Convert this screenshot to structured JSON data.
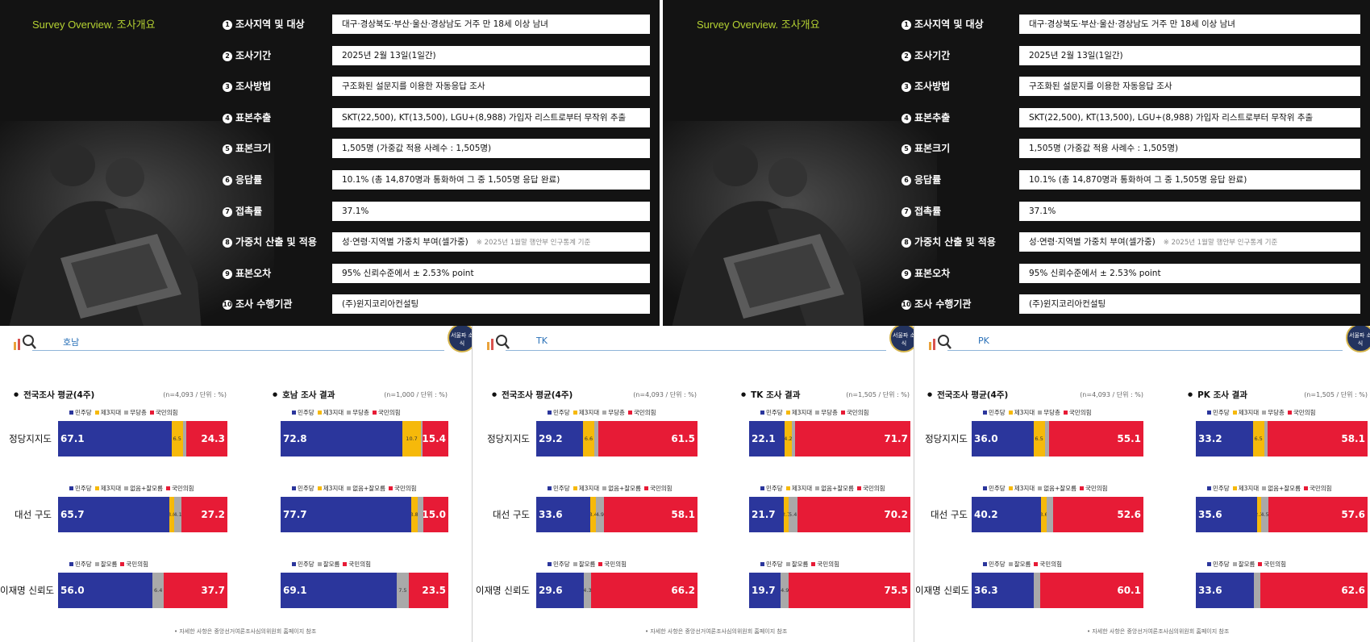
{
  "colors": {
    "dem": "#2b369c",
    "third": "#f6b90a",
    "none": "#a9a9a9",
    "ppp": "#e71b36",
    "title": "#b5d232"
  },
  "survey": {
    "title": "Survey Overview. 조사개요",
    "rows": [
      {
        "num": "1",
        "label": "조사지역 및 대상",
        "value": "대구·경상북도·부산·울산·경상남도 거주 만 18세 이상 남녀",
        "note": ""
      },
      {
        "num": "2",
        "label": "조사기간",
        "value": "2025년 2월 13일(1일간)",
        "note": ""
      },
      {
        "num": "3",
        "label": "조사방법",
        "value": "구조화된 설문지를 이용한 자동응답 조사",
        "note": ""
      },
      {
        "num": "4",
        "label": "표본추출",
        "value": "SKT(22,500), KT(13,500), LGU+(8,988) 가입자 리스트로부터 무작위 추출",
        "note": ""
      },
      {
        "num": "5",
        "label": "표본크기",
        "value": "1,505명 (가중값 적용 사례수 : 1,505명)",
        "note": ""
      },
      {
        "num": "6",
        "label": "응답률",
        "value": "10.1% (총 14,870명과 통화하여 그 중 1,505명 응답 완료)",
        "note": ""
      },
      {
        "num": "7",
        "label": "접촉률",
        "value": "37.1%",
        "note": ""
      },
      {
        "num": "8",
        "label": "가중치 산출 및 적용",
        "value": "성·연령·지역별 가중치 부여(셀가중)",
        "note": "※ 2025년 1월말 행안부 인구통계 기준"
      },
      {
        "num": "9",
        "label": "표본오차",
        "value": "95% 신뢰수준에서 ± 2.53% point",
        "note": ""
      },
      {
        "num": "10",
        "label": "조사 수행기관",
        "value": "(주)윈지코리아컨설팅",
        "note": ""
      }
    ]
  },
  "seal_text": "서울파 소식",
  "panels": [
    {
      "region": "호남",
      "footnote": "• 자세한 사항은 중앙선거여론조사심의위원회 홈페이지 참조"
    },
    {
      "region": "TK",
      "footnote": "• 자세한 사항은 중앙선거여론조사심의위원회 홈페이지 참조"
    },
    {
      "region": "PK",
      "footnote": "• 자세한 사항은 중앙선거여론조사심의위원회 홈페이지 참조"
    }
  ],
  "row_labels": [
    "정당지지도",
    "대선 구도",
    "이재명 신뢰도"
  ],
  "legends": [
    [
      {
        "name": "민주당",
        "c": "dem"
      },
      {
        "name": "제3지대",
        "c": "third"
      },
      {
        "name": "무당층",
        "c": "none"
      },
      {
        "name": "국민의힘",
        "c": "ppp"
      }
    ],
    [
      {
        "name": "민주당",
        "c": "dem"
      },
      {
        "name": "제3지대",
        "c": "third"
      },
      {
        "name": "없음+잘모름",
        "c": "none"
      },
      {
        "name": "국민의힘",
        "c": "ppp"
      }
    ],
    [
      {
        "name": "민주당",
        "c": "dem"
      },
      {
        "name": "잘모름",
        "c": "none"
      },
      {
        "name": "국민의힘",
        "c": "ppp"
      }
    ]
  ],
  "chart_data": [
    {
      "type": "bar",
      "stacked": true,
      "horizontal": true,
      "title": "전국조사 평균(4주)",
      "note": "(n=4,093 / 단위 : %)",
      "categories": [
        "정당지지도",
        "대선 구도",
        "이재명 신뢰도"
      ],
      "rows": [
        [
          {
            "c": "dem",
            "v": 67.1
          },
          {
            "c": "third",
            "v": 6.5
          },
          {
            "c": "none",
            "v": 2.1
          },
          {
            "c": "ppp",
            "v": 24.3
          }
        ],
        [
          {
            "c": "dem",
            "v": 65.7
          },
          {
            "c": "third",
            "v": 3.0
          },
          {
            "c": "none",
            "v": 4.1
          },
          {
            "c": "ppp",
            "v": 27.2
          }
        ],
        [
          {
            "c": "dem",
            "v": 56.0
          },
          {
            "c": "none",
            "v": 6.4
          },
          {
            "c": "ppp",
            "v": 37.7
          }
        ]
      ]
    },
    {
      "type": "bar",
      "stacked": true,
      "horizontal": true,
      "title": "호남 조사 결과",
      "note": "(n=1,000 / 단위 : %)",
      "categories": [
        "정당지지도",
        "대선 구도",
        "이재명 신뢰도"
      ],
      "rows": [
        [
          {
            "c": "dem",
            "v": 72.8
          },
          {
            "c": "third",
            "v": 10.7
          },
          {
            "c": "none",
            "v": 1.1
          },
          {
            "c": "ppp",
            "v": 15.4
          }
        ],
        [
          {
            "c": "dem",
            "v": 77.7
          },
          {
            "c": "third",
            "v": 3.8
          },
          {
            "c": "none",
            "v": 3.5
          },
          {
            "c": "ppp",
            "v": 15.0
          }
        ],
        [
          {
            "c": "dem",
            "v": 69.1
          },
          {
            "c": "none",
            "v": 7.5
          },
          {
            "c": "ppp",
            "v": 23.5
          }
        ]
      ]
    },
    {
      "type": "bar",
      "stacked": true,
      "horizontal": true,
      "title": "전국조사 평균(4주)",
      "note": "(n=4,093 / 단위 : %)",
      "categories": [
        "정당지지도",
        "대선 구도",
        "이재명 신뢰도"
      ],
      "rows": [
        [
          {
            "c": "dem",
            "v": 29.2
          },
          {
            "c": "third",
            "v": 6.6
          },
          {
            "c": "none",
            "v": 2.7
          },
          {
            "c": "ppp",
            "v": 61.5
          }
        ],
        [
          {
            "c": "dem",
            "v": 33.6
          },
          {
            "c": "third",
            "v": 3.4
          },
          {
            "c": "none",
            "v": 4.9
          },
          {
            "c": "ppp",
            "v": 58.1
          }
        ],
        [
          {
            "c": "dem",
            "v": 29.6
          },
          {
            "c": "none",
            "v": 4.3
          },
          {
            "c": "ppp",
            "v": 66.2
          }
        ]
      ]
    },
    {
      "type": "bar",
      "stacked": true,
      "horizontal": true,
      "title": "TK 조사 결과",
      "note": "(n=1,505 / 단위 : %)",
      "categories": [
        "정당지지도",
        "대선 구도",
        "이재명 신뢰도"
      ],
      "rows": [
        [
          {
            "c": "dem",
            "v": 22.1
          },
          {
            "c": "third",
            "v": 4.2
          },
          {
            "c": "none",
            "v": 2.0
          },
          {
            "c": "ppp",
            "v": 71.7
          }
        ],
        [
          {
            "c": "dem",
            "v": 21.7
          },
          {
            "c": "third",
            "v": 2.7
          },
          {
            "c": "none",
            "v": 5.4
          },
          {
            "c": "ppp",
            "v": 70.2
          }
        ],
        [
          {
            "c": "dem",
            "v": 19.7
          },
          {
            "c": "none",
            "v": 4.9
          },
          {
            "c": "ppp",
            "v": 75.5
          }
        ]
      ]
    },
    {
      "type": "bar",
      "stacked": true,
      "horizontal": true,
      "title": "전국조사 평균(4주)",
      "note": "(n=4,093 / 단위 : %)",
      "categories": [
        "정당지지도",
        "대선 구도",
        "이재명 신뢰도"
      ],
      "rows": [
        [
          {
            "c": "dem",
            "v": 36.0
          },
          {
            "c": "third",
            "v": 6.5
          },
          {
            "c": "none",
            "v": 2.4
          },
          {
            "c": "ppp",
            "v": 55.1
          }
        ],
        [
          {
            "c": "dem",
            "v": 40.2
          },
          {
            "c": "third",
            "v": 3.6
          },
          {
            "c": "none",
            "v": 3.6
          },
          {
            "c": "ppp",
            "v": 52.6
          }
        ],
        [
          {
            "c": "dem",
            "v": 36.3
          },
          {
            "c": "none",
            "v": 3.6
          },
          {
            "c": "ppp",
            "v": 60.1
          }
        ]
      ]
    },
    {
      "type": "bar",
      "stacked": true,
      "horizontal": true,
      "title": "PK 조사 결과",
      "note": "(n=1,505 / 단위 : %)",
      "categories": [
        "정당지지도",
        "대선 구도",
        "이재명 신뢰도"
      ],
      "rows": [
        [
          {
            "c": "dem",
            "v": 33.2
          },
          {
            "c": "third",
            "v": 6.5
          },
          {
            "c": "none",
            "v": 2.2
          },
          {
            "c": "ppp",
            "v": 58.1
          }
        ],
        [
          {
            "c": "dem",
            "v": 35.6
          },
          {
            "c": "third",
            "v": 2.3
          },
          {
            "c": "none",
            "v": 4.5
          },
          {
            "c": "ppp",
            "v": 57.6
          }
        ],
        [
          {
            "c": "dem",
            "v": 33.6
          },
          {
            "c": "none",
            "v": 3.8
          },
          {
            "c": "ppp",
            "v": 62.6
          }
        ]
      ]
    }
  ]
}
